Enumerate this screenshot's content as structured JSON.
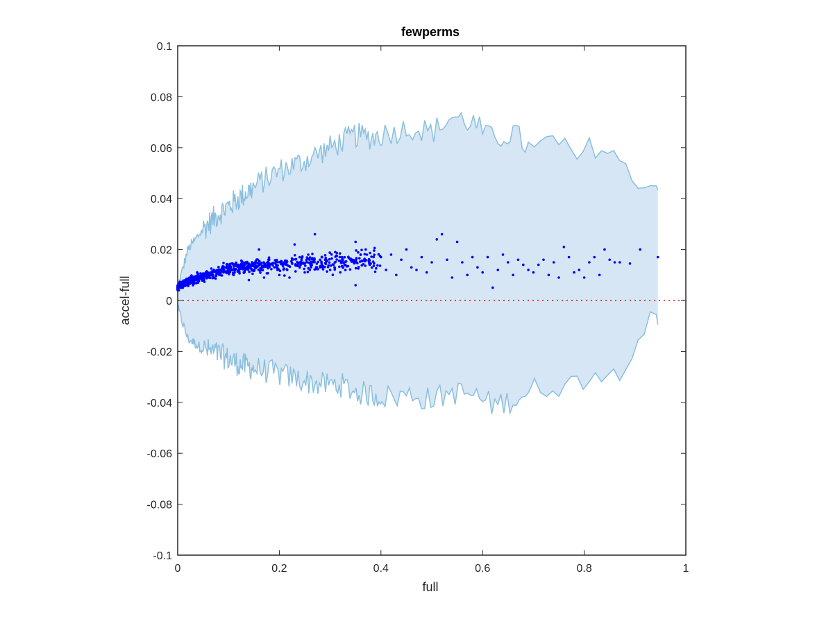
{
  "chart_data": {
    "type": "scatter",
    "title": "fewperms",
    "xlabel": "full",
    "ylabel": "accel-full",
    "xlim": [
      0,
      1
    ],
    "ylim": [
      -0.1,
      0.1
    ],
    "xticks": [
      0,
      0.2,
      0.4,
      0.6,
      0.8,
      1
    ],
    "xtick_labels": [
      "0",
      "0.2",
      "0.4",
      "0.6",
      "0.8",
      "1"
    ],
    "yticks": [
      -0.1,
      -0.08,
      -0.06,
      -0.04,
      -0.02,
      0,
      0.02,
      0.04,
      0.06,
      0.08,
      0.1
    ],
    "ytick_labels": [
      "-0.1",
      "-0.08",
      "-0.06",
      "-0.04",
      "-0.02",
      "0",
      "0.02",
      "0.04",
      "0.06",
      "0.08",
      "0.1"
    ],
    "grid": false,
    "reference_line": {
      "y": 0,
      "style": "dotted",
      "color": "#ff0000"
    },
    "band": {
      "color_fill": "#d6e6f4",
      "color_line": "#8abfde",
      "x": [
        0.0,
        0.02,
        0.05,
        0.08,
        0.12,
        0.16,
        0.2,
        0.24,
        0.28,
        0.32,
        0.35,
        0.38,
        0.42,
        0.46,
        0.5,
        0.54,
        0.58,
        0.62,
        0.66,
        0.7,
        0.74,
        0.78,
        0.82,
        0.86,
        0.9,
        0.92,
        0.945
      ],
      "upper": [
        0.005,
        0.02,
        0.028,
        0.034,
        0.04,
        0.046,
        0.051,
        0.054,
        0.058,
        0.062,
        0.065,
        0.064,
        0.066,
        0.068,
        0.066,
        0.072,
        0.07,
        0.063,
        0.066,
        0.058,
        0.064,
        0.055,
        0.061,
        0.058,
        0.044,
        0.049,
        0.0435
      ],
      "lower": [
        -0.003,
        -0.015,
        -0.019,
        -0.021,
        -0.025,
        -0.027,
        -0.029,
        -0.031,
        -0.033,
        -0.033,
        -0.036,
        -0.037,
        -0.038,
        -0.037,
        -0.039,
        -0.036,
        -0.037,
        -0.041,
        -0.039,
        -0.035,
        -0.033,
        -0.033,
        -0.027,
        -0.03,
        -0.016,
        -0.009,
        -0.0095
      ]
    },
    "points_color": "#0000ff",
    "points": [
      [
        0.38,
        0.0145
      ],
      [
        0.4,
        0.017
      ],
      [
        0.41,
        0.012
      ],
      [
        0.42,
        0.018
      ],
      [
        0.43,
        0.01
      ],
      [
        0.44,
        0.016
      ],
      [
        0.45,
        0.02
      ],
      [
        0.46,
        0.013
      ],
      [
        0.47,
        0.012
      ],
      [
        0.48,
        0.017
      ],
      [
        0.49,
        0.011
      ],
      [
        0.5,
        0.015
      ],
      [
        0.51,
        0.024
      ],
      [
        0.52,
        0.026
      ],
      [
        0.53,
        0.016
      ],
      [
        0.54,
        0.009
      ],
      [
        0.55,
        0.023
      ],
      [
        0.56,
        0.015
      ],
      [
        0.57,
        0.01
      ],
      [
        0.58,
        0.017
      ],
      [
        0.59,
        0.013
      ],
      [
        0.6,
        0.011
      ],
      [
        0.61,
        0.017
      ],
      [
        0.62,
        0.005
      ],
      [
        0.63,
        0.012
      ],
      [
        0.64,
        0.018
      ],
      [
        0.65,
        0.015
      ],
      [
        0.66,
        0.01
      ],
      [
        0.67,
        0.016
      ],
      [
        0.68,
        0.014
      ],
      [
        0.69,
        0.012
      ],
      [
        0.7,
        0.011
      ],
      [
        0.71,
        0.014
      ],
      [
        0.72,
        0.016
      ],
      [
        0.73,
        0.01
      ],
      [
        0.74,
        0.015
      ],
      [
        0.75,
        0.009
      ],
      [
        0.76,
        0.021
      ],
      [
        0.77,
        0.017
      ],
      [
        0.78,
        0.011
      ],
      [
        0.79,
        0.012
      ],
      [
        0.8,
        0.009
      ],
      [
        0.81,
        0.015
      ],
      [
        0.82,
        0.017
      ],
      [
        0.83,
        0.01
      ],
      [
        0.84,
        0.02
      ],
      [
        0.85,
        0.016
      ],
      [
        0.86,
        0.015
      ],
      [
        0.87,
        0.015
      ],
      [
        0.89,
        0.0145
      ],
      [
        0.91,
        0.02
      ],
      [
        0.945,
        0.017
      ],
      [
        0.36,
        0.018
      ],
      [
        0.37,
        0.02
      ],
      [
        0.35,
        0.023
      ],
      [
        0.34,
        0.016
      ],
      [
        0.35,
        0.006
      ],
      [
        0.33,
        0.014
      ],
      [
        0.32,
        0.011
      ],
      [
        0.31,
        0.019
      ],
      [
        0.3,
        0.012
      ],
      [
        0.29,
        0.016
      ],
      [
        0.28,
        0.013
      ],
      [
        0.27,
        0.026
      ],
      [
        0.26,
        0.012
      ],
      [
        0.25,
        0.011
      ],
      [
        0.24,
        0.017
      ],
      [
        0.23,
        0.022
      ],
      [
        0.22,
        0.009
      ],
      [
        0.21,
        0.015
      ],
      [
        0.2,
        0.01
      ],
      [
        0.19,
        0.013
      ],
      [
        0.18,
        0.016
      ],
      [
        0.17,
        0.009
      ],
      [
        0.16,
        0.02
      ],
      [
        0.15,
        0.012
      ],
      [
        0.14,
        0.008
      ],
      [
        0.13,
        0.011
      ],
      [
        0.12,
        0.014
      ],
      [
        0.11,
        0.01
      ],
      [
        0.1,
        0.013
      ],
      [
        0.09,
        0.011
      ],
      [
        0.08,
        0.012
      ],
      [
        0.07,
        0.01
      ],
      [
        0.06,
        0.009
      ],
      [
        0.05,
        0.008
      ],
      [
        0.04,
        0.007
      ],
      [
        0.03,
        0.006
      ],
      [
        0.02,
        0.006
      ],
      [
        0.01,
        0.005
      ],
      [
        0.005,
        0.005
      ],
      [
        0.002,
        0.004
      ]
    ],
    "cluster": {
      "description_count": 900,
      "x_range": [
        0.0,
        0.4
      ],
      "dense_until": 0.12
    }
  }
}
